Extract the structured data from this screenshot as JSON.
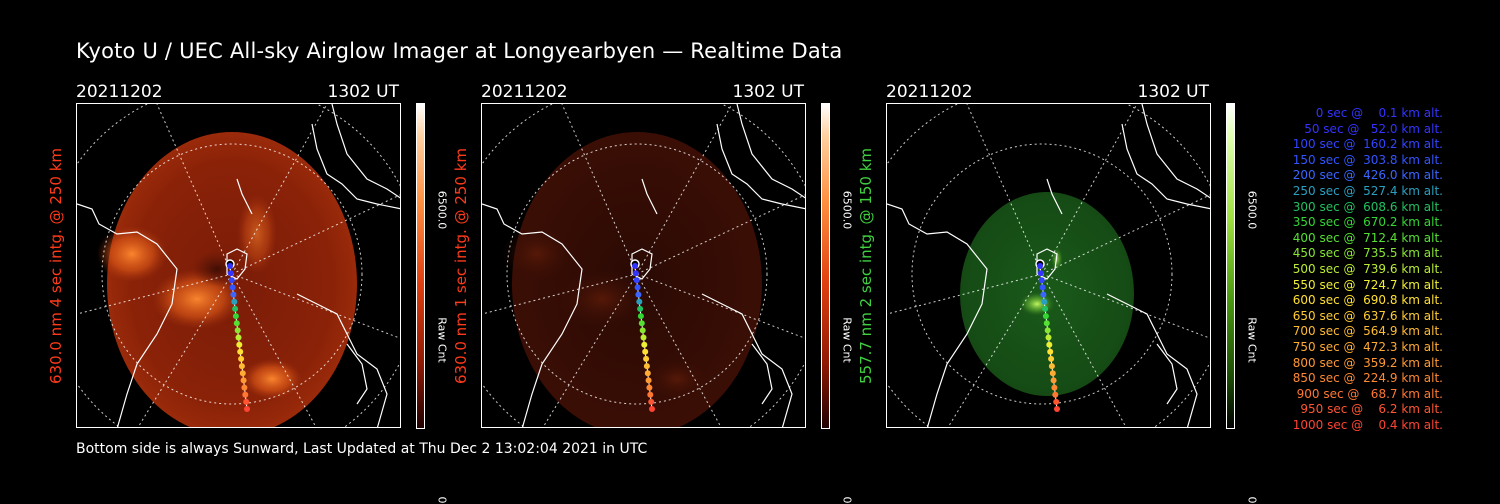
{
  "title": "Kyoto U / UEC All-sky Airglow Imager at Longyearbyen — Realtime Data",
  "footer": "Bottom side is always Sunward, Last Updated at Thu Dec  2 13:02:04 2021 in UTC",
  "panels": [
    {
      "date": "20211202",
      "time": "1302 UT",
      "ylabel": "630.0 nm 4 sec intg. @ 250 km",
      "label_color": "#ff3a1a",
      "cbar_max": "6500.0",
      "cbar_min": "0",
      "cbar_label": "Raw Cnt",
      "colormap": "red"
    },
    {
      "date": "20211202",
      "time": "1302 UT",
      "ylabel": "630.0 nm 1 sec intg. @ 250 km",
      "label_color": "#ff3a1a",
      "cbar_max": "6500.0",
      "cbar_min": "0",
      "cbar_label": "Raw Cnt",
      "colormap": "red"
    },
    {
      "date": "20211202",
      "time": "1302 UT",
      "ylabel": "557.7 nm 2 sec intg. @ 150 km",
      "label_color": "#3fd13f",
      "cbar_max": "6500.0",
      "cbar_min": "0",
      "cbar_label": "Raw Cnt",
      "colormap": "green"
    }
  ],
  "legend": [
    {
      "text": "0 sec @    0.1 km alt.",
      "color": "#3333ff"
    },
    {
      "text": "50 sec @   52.0 km alt.",
      "color": "#3333ff"
    },
    {
      "text": "100 sec @  160.2 km alt.",
      "color": "#3344ff"
    },
    {
      "text": "150 sec @  303.8 km alt.",
      "color": "#3355ff"
    },
    {
      "text": "200 sec @  426.0 km alt.",
      "color": "#3a66ff"
    },
    {
      "text": "250 sec @  527.4 km alt.",
      "color": "#2aa0c0"
    },
    {
      "text": "300 sec @  608.6 km alt.",
      "color": "#22c060"
    },
    {
      "text": "350 sec @  670.2 km alt.",
      "color": "#33d633"
    },
    {
      "text": "400 sec @  712.4 km alt.",
      "color": "#55e033"
    },
    {
      "text": "450 sec @  735.5 km alt.",
      "color": "#88e633"
    },
    {
      "text": "500 sec @  739.6 km alt.",
      "color": "#bbee33"
    },
    {
      "text": "550 sec @  724.7 km alt.",
      "color": "#eeee33"
    },
    {
      "text": "600 sec @  690.8 km alt.",
      "color": "#ffe033"
    },
    {
      "text": "650 sec @  637.6 km alt.",
      "color": "#ffcc33"
    },
    {
      "text": "700 sec @  564.9 km alt.",
      "color": "#ffbb33"
    },
    {
      "text": "750 sec @  472.3 km alt.",
      "color": "#ffaa33"
    },
    {
      "text": "800 sec @  359.2 km alt.",
      "color": "#ff9933"
    },
    {
      "text": "850 sec @  224.9 km alt.",
      "color": "#ff8833"
    },
    {
      "text": "900 sec @   68.7 km alt.",
      "color": "#ff7733"
    },
    {
      "text": "950 sec @    6.2 km alt.",
      "color": "#ff5533"
    },
    {
      "text": "1000 sec @    0.4 km alt.",
      "color": "#ff4433"
    }
  ]
}
